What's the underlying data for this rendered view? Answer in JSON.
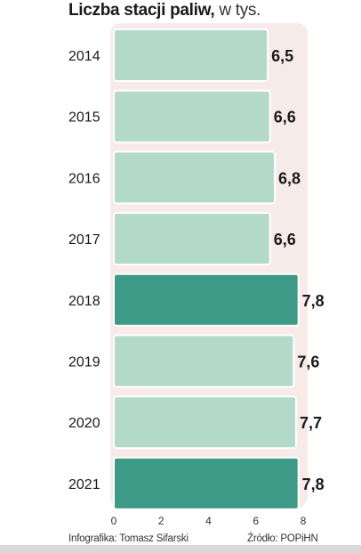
{
  "chart_data": {
    "type": "bar",
    "orientation": "horizontal",
    "title_bold": "Liczba stacji paliw,",
    "title_rest": " w tys.",
    "categories": [
      "2014",
      "2015",
      "2016",
      "2017",
      "2018",
      "2019",
      "2020",
      "2021"
    ],
    "values": [
      6.5,
      6.6,
      6.8,
      6.6,
      7.8,
      7.6,
      7.7,
      7.8
    ],
    "value_labels": [
      "6,5",
      "6,6",
      "6,8",
      "6,6",
      "7,8",
      "7,6",
      "7,7",
      "7,8"
    ],
    "highlighted": [
      false,
      false,
      false,
      false,
      true,
      false,
      false,
      true
    ],
    "xlim": [
      0,
      8
    ],
    "x_ticks": [
      "0",
      "2",
      "4",
      "6",
      "8"
    ],
    "x_tick_values": [
      0,
      2,
      4,
      6,
      8
    ],
    "colors": {
      "bar": "#b3d9cb",
      "bar_highlight": "#3d9a87",
      "bar_outline": "#ffffff",
      "background_panel": "#f7ebea"
    }
  },
  "footer": {
    "credit": "Infografika: Tomasz Sifarski",
    "source": "Źródło: POPiHN"
  }
}
